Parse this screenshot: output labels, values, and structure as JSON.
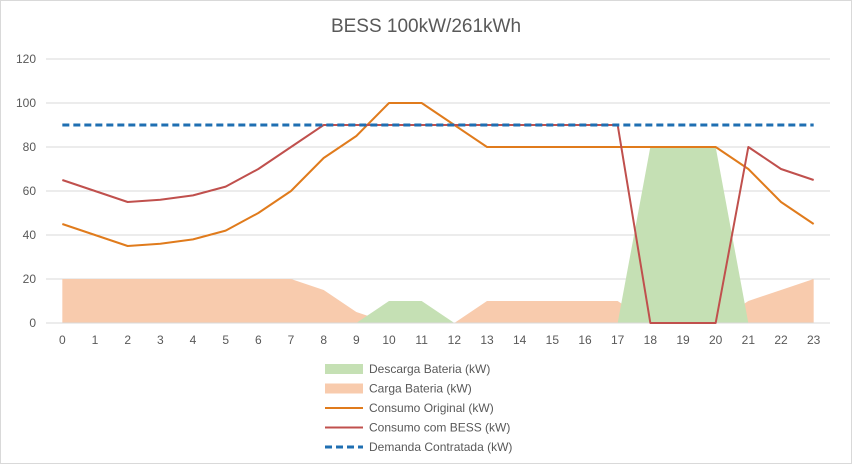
{
  "chart_data": {
    "type": "line",
    "title": "BESS 100kW/261kWh",
    "xlabel": "",
    "ylabel": "",
    "x": [
      0,
      1,
      2,
      3,
      4,
      5,
      6,
      7,
      8,
      9,
      10,
      11,
      12,
      13,
      14,
      15,
      16,
      17,
      18,
      19,
      20,
      21,
      22,
      23
    ],
    "ylim": [
      0,
      120
    ],
    "yticks": [
      0,
      20,
      40,
      60,
      80,
      100,
      120
    ],
    "grid": true,
    "legend_position": "bottom",
    "series": [
      {
        "name": "Descarga Bateria (kW)",
        "kind": "area",
        "color": "#c5e0b4",
        "values": [
          0,
          0,
          0,
          0,
          0,
          0,
          0,
          0,
          0,
          0,
          10,
          10,
          0,
          0,
          0,
          0,
          0,
          0,
          80,
          80,
          80,
          0,
          0,
          0
        ]
      },
      {
        "name": "Carga Bateria (kW)",
        "kind": "area",
        "color": "#f8cbad",
        "values": [
          20,
          20,
          20,
          20,
          20,
          20,
          20,
          20,
          15,
          5,
          0,
          0,
          0,
          10,
          10,
          10,
          10,
          10,
          0,
          0,
          0,
          10,
          15,
          20
        ]
      },
      {
        "name": "Consumo Original (kW)",
        "kind": "line",
        "color": "#e07b1c",
        "values": [
          45,
          40,
          35,
          36,
          38,
          42,
          50,
          60,
          75,
          85,
          100,
          100,
          90,
          80,
          80,
          80,
          80,
          80,
          80,
          80,
          80,
          70,
          55,
          45
        ]
      },
      {
        "name": "Consumo com BESS (kW)",
        "kind": "line",
        "color": "#c0504d",
        "values": [
          65,
          60,
          55,
          56,
          58,
          62,
          70,
          80,
          90,
          90,
          90,
          90,
          90,
          90,
          90,
          90,
          90,
          90,
          0,
          0,
          0,
          80,
          70,
          65
        ]
      },
      {
        "name": "Demanda Contratada (kW)",
        "kind": "dashed",
        "color": "#1f6fb2",
        "values": [
          90,
          90,
          90,
          90,
          90,
          90,
          90,
          90,
          90,
          90,
          90,
          90,
          90,
          90,
          90,
          90,
          90,
          90,
          90,
          90,
          90,
          90,
          90,
          90
        ]
      }
    ]
  }
}
